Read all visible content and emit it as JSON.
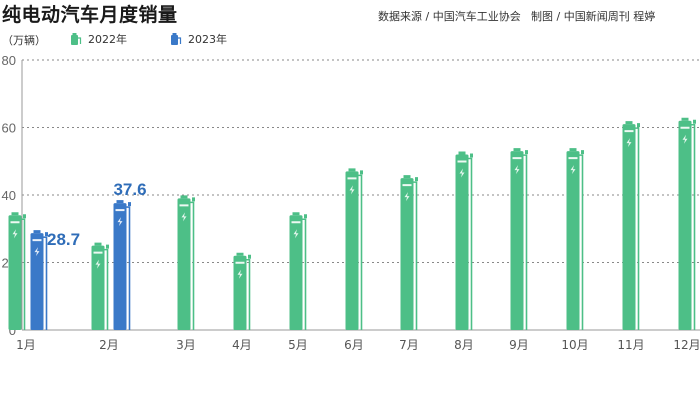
{
  "title": "纯电动汽车月度销量",
  "source": "数据来源 / 中国汽车工业协会",
  "credit": "制图 / 中国新闻周刊 程婷",
  "colors": {
    "y2022": "#4dbf87",
    "y2023": "#3a79c8",
    "label2023": "#2f6db8",
    "grid": "#888888"
  },
  "chart_data": {
    "type": "bar",
    "ylabel": "（万辆）",
    "ylim": [
      0,
      80
    ],
    "yticks": [
      0,
      20,
      40,
      60,
      80
    ],
    "grid": true,
    "legend_position": "top-left",
    "categories": [
      "1月",
      "2月",
      "3月",
      "4月",
      "5月",
      "6月",
      "7月",
      "8月",
      "9月",
      "10月",
      "11月",
      "12月"
    ],
    "series": [
      {
        "name": "2022年",
        "values": [
          34,
          25,
          39,
          22,
          34,
          47,
          45,
          52,
          53,
          53,
          61,
          62
        ]
      },
      {
        "name": "2023年",
        "values": [
          28.7,
          37.6,
          null,
          null,
          null,
          null,
          null,
          null,
          null,
          null,
          null,
          null
        ],
        "data_labels": [
          "28.7",
          "37.6"
        ]
      }
    ]
  }
}
